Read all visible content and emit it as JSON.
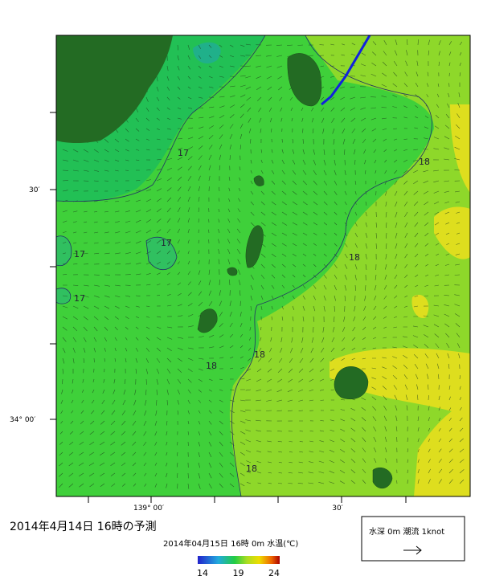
{
  "map": {
    "title": "2014年4月14日 16時の予測",
    "subtitle": "2014年04月15日 16時 0m 水温(℃)",
    "latitude_labels": [
      "30′",
      "34° 00′"
    ],
    "longitude_labels": [
      "139° 00′",
      "30′"
    ],
    "contour_labels": [
      "17",
      "17",
      "17",
      "17",
      "18",
      "18",
      "18",
      "18",
      "18"
    ],
    "colorbar": {
      "ticks": [
        14,
        19,
        24
      ]
    },
    "legend": {
      "text": "水深 0m 潮流 1knot"
    }
  }
}
